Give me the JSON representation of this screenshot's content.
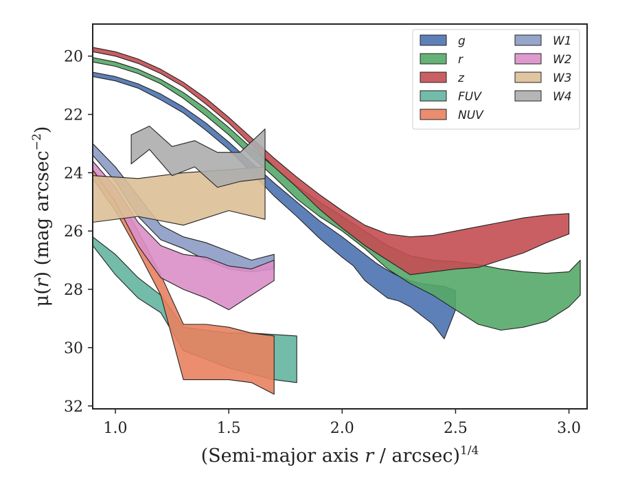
{
  "chart_data": {
    "type": "area",
    "x_axis": {
      "label_parts": [
        "(Semi-major axis ",
        "r",
        " / arcsec)",
        "1/4"
      ],
      "range": [
        0.9,
        3.08
      ],
      "ticks": [
        1.0,
        1.5,
        2.0,
        2.5,
        3.0
      ],
      "tick_labels": [
        "1.0",
        "1.5",
        "2.0",
        "2.5",
        "3.0"
      ]
    },
    "y_axis": {
      "label_parts": [
        "μ(",
        "r",
        ") (mag arcsec",
        "−2",
        ")"
      ],
      "range": [
        32.1,
        18.9
      ],
      "inverted": true,
      "ticks": [
        20,
        22,
        24,
        26,
        28,
        30,
        32
      ],
      "tick_labels": [
        "20",
        "22",
        "24",
        "26",
        "28",
        "30",
        "32"
      ]
    },
    "grid": false,
    "legend": {
      "position": "top-right",
      "columns": 2,
      "entries": [
        "g",
        "r",
        "z",
        "FUV",
        "NUV",
        "W1",
        "W2",
        "W3",
        "W4"
      ]
    },
    "series": [
      {
        "name": "g",
        "color": "#4c72b0",
        "x": [
          0.9,
          1.0,
          1.1,
          1.2,
          1.3,
          1.4,
          1.5,
          1.6,
          1.7,
          1.8,
          1.9,
          2.0,
          2.05,
          2.1,
          2.15,
          2.2,
          2.25,
          2.3,
          2.35,
          2.4,
          2.45,
          2.5
        ],
        "lower": [
          20.55,
          20.7,
          20.95,
          21.3,
          21.75,
          22.3,
          22.95,
          23.65,
          24.35,
          25.0,
          25.65,
          26.2,
          26.5,
          26.8,
          27.1,
          27.35,
          27.55,
          27.7,
          27.8,
          27.85,
          27.9,
          28.05
        ],
        "upper": [
          20.7,
          20.85,
          21.1,
          21.5,
          21.95,
          22.55,
          23.2,
          24.0,
          24.8,
          25.5,
          26.25,
          26.9,
          27.2,
          27.7,
          28.0,
          28.3,
          28.4,
          28.6,
          28.9,
          29.2,
          29.7,
          28.7
        ]
      },
      {
        "name": "r",
        "color": "#55a868",
        "x": [
          0.9,
          1.0,
          1.1,
          1.2,
          1.3,
          1.4,
          1.5,
          1.6,
          1.7,
          1.8,
          1.9,
          2.0,
          2.1,
          2.2,
          2.3,
          2.4,
          2.5,
          2.6,
          2.7,
          2.8,
          2.9,
          3.0,
          3.05
        ],
        "lower": [
          20.05,
          20.2,
          20.45,
          20.8,
          21.25,
          21.8,
          22.45,
          23.15,
          23.8,
          24.45,
          25.0,
          25.5,
          26.0,
          26.5,
          26.85,
          27.0,
          27.05,
          27.15,
          27.3,
          27.4,
          27.45,
          27.4,
          27.0
        ],
        "upper": [
          20.2,
          20.35,
          20.6,
          20.95,
          21.45,
          22.05,
          22.7,
          23.45,
          24.15,
          24.9,
          25.5,
          26.0,
          26.6,
          27.3,
          27.8,
          28.2,
          28.7,
          29.2,
          29.4,
          29.3,
          29.1,
          28.6,
          28.2
        ]
      },
      {
        "name": "z",
        "color": "#c44e52",
        "x": [
          0.9,
          1.0,
          1.1,
          1.2,
          1.3,
          1.4,
          1.5,
          1.6,
          1.7,
          1.8,
          1.9,
          2.0,
          2.1,
          2.2,
          2.3,
          2.4,
          2.5,
          2.6,
          2.7,
          2.8,
          2.9,
          3.0
        ],
        "lower": [
          19.7,
          19.85,
          20.1,
          20.45,
          20.9,
          21.45,
          22.1,
          22.8,
          23.5,
          24.15,
          24.75,
          25.3,
          25.8,
          26.1,
          26.2,
          26.15,
          26.0,
          25.85,
          25.7,
          25.55,
          25.45,
          25.4
        ],
        "upper": [
          19.85,
          20.0,
          20.25,
          20.6,
          21.05,
          21.65,
          22.3,
          23.05,
          23.8,
          24.5,
          25.25,
          25.9,
          26.5,
          27.0,
          27.5,
          27.4,
          27.3,
          27.25,
          27.0,
          26.75,
          26.4,
          26.1
        ]
      },
      {
        "name": "FUV",
        "color": "#64b5a0",
        "x": [
          0.9,
          1.0,
          1.1,
          1.2,
          1.3,
          1.4,
          1.5,
          1.6,
          1.7,
          1.8
        ],
        "lower": [
          26.2,
          26.8,
          27.6,
          28.2,
          29.3,
          29.4,
          29.5,
          29.5,
          29.55,
          29.6
        ],
        "upper": [
          26.5,
          27.5,
          28.3,
          28.8,
          30.1,
          30.4,
          30.7,
          30.9,
          31.1,
          31.2
        ]
      },
      {
        "name": "NUV",
        "color": "#e8825f",
        "x": [
          0.9,
          1.0,
          1.1,
          1.2,
          1.3,
          1.4,
          1.5,
          1.6,
          1.7
        ],
        "lower": [
          23.9,
          24.7,
          26.0,
          27.5,
          29.2,
          29.2,
          29.3,
          29.5,
          29.6
        ],
        "upper": [
          24.2,
          25.3,
          26.7,
          28.2,
          31.1,
          31.1,
          31.1,
          31.2,
          31.6
        ]
      },
      {
        "name": "W1",
        "color": "#8c9bc4",
        "x": [
          0.9,
          1.0,
          1.1,
          1.2,
          1.3,
          1.4,
          1.5,
          1.6,
          1.7
        ],
        "lower": [
          23.0,
          23.8,
          24.8,
          25.8,
          26.2,
          26.4,
          26.7,
          27.0,
          26.8
        ],
        "upper": [
          23.4,
          24.3,
          25.5,
          26.3,
          26.6,
          27.0,
          27.3,
          27.4,
          27.3
        ]
      },
      {
        "name": "W2",
        "color": "#dc8fc8",
        "x": [
          0.9,
          1.0,
          1.1,
          1.2,
          1.3,
          1.4,
          1.5,
          1.6,
          1.7
        ],
        "lower": [
          23.6,
          24.5,
          25.7,
          26.5,
          26.8,
          26.9,
          27.2,
          27.3,
          27.0
        ],
        "upper": [
          23.9,
          25.0,
          26.5,
          27.6,
          28.0,
          28.3,
          28.7,
          28.2,
          27.7
        ]
      },
      {
        "name": "W3",
        "color": "#dcbf96",
        "x": [
          0.9,
          1.1,
          1.3,
          1.5,
          1.66
        ],
        "lower": [
          24.1,
          24.2,
          24.0,
          23.9,
          23.8
        ],
        "upper": [
          25.7,
          25.5,
          25.8,
          25.3,
          25.6
        ]
      },
      {
        "name": "W4",
        "color": "#adadad",
        "x": [
          1.07,
          1.15,
          1.25,
          1.35,
          1.45,
          1.55,
          1.66
        ],
        "lower": [
          22.7,
          22.4,
          23.1,
          22.9,
          23.3,
          23.3,
          22.5
        ],
        "upper": [
          23.7,
          23.2,
          24.1,
          23.8,
          24.5,
          24.3,
          24.2
        ]
      }
    ]
  }
}
